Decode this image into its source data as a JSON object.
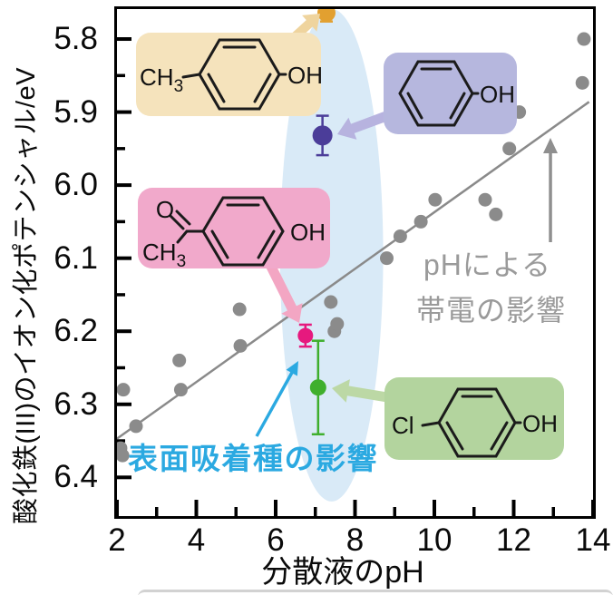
{
  "chart_data": {
    "type": "scatter",
    "title": "",
    "xlabel": "分散液のpH",
    "ylabel": "酸化鉄(III)のイオン化ポテンシャル/eV",
    "x_axis": {
      "min": 2,
      "max": 14,
      "major_ticks": [
        2,
        4,
        6,
        8,
        10,
        12,
        14
      ],
      "minor_ticks": [
        3,
        5,
        7,
        9,
        11,
        13
      ]
    },
    "y_axis": {
      "min": 5.759,
      "max": 6.453,
      "inverted": true,
      "unit": "eV",
      "major_ticks": [
        5.8,
        5.9,
        6.0,
        6.1,
        6.2,
        6.3,
        6.4
      ],
      "minor_ticks": [
        5.85,
        5.95,
        6.05,
        6.15,
        6.25,
        6.35
      ]
    },
    "gray_color": "#8b8b8b",
    "gray_points": [
      [
        2.16,
        6.28
      ],
      [
        2.09,
        6.36
      ],
      [
        2.14,
        6.37
      ],
      [
        2.48,
        6.33
      ],
      [
        3.57,
        6.24
      ],
      [
        3.61,
        6.28
      ],
      [
        5.09,
        6.17
      ],
      [
        5.11,
        6.22
      ],
      [
        7.39,
        6.16
      ],
      [
        7.48,
        6.2
      ],
      [
        7.55,
        6.19
      ],
      [
        8.8,
        6.1
      ],
      [
        9.14,
        6.07
      ],
      [
        9.66,
        6.05
      ],
      [
        10.02,
        6.02
      ],
      [
        11.28,
        6.02
      ],
      [
        11.55,
        6.04
      ],
      [
        11.89,
        5.95
      ],
      [
        12.14,
        5.9
      ],
      [
        13.73,
        5.86
      ],
      [
        13.77,
        5.8
      ]
    ],
    "trend_line": {
      "x1": 2.0,
      "y1": 6.347,
      "x2": 13.9,
      "y2": 5.886,
      "color": "#8a8a8a"
    },
    "highlight_ellipse": {
      "center_ph": 7.41,
      "center_ev": 6.096,
      "rx_ph": 1.3,
      "ry_ev": 0.337,
      "color": "#D9EAF7"
    },
    "special_points": [
      {
        "name": "p-cresol",
        "ph": 7.28,
        "ev": 5.764,
        "err": 0.012,
        "color": "#E2A030",
        "r": 10
      },
      {
        "name": "phenol",
        "ph": 7.18,
        "ev": 5.932,
        "err": 0.027,
        "color": "#4B3D99",
        "r": 11
      },
      {
        "name": "4-hydroxyacetophenone",
        "ph": 6.75,
        "ev": 6.206,
        "err": 0.015,
        "color": "#E6197E",
        "r": 8.5
      },
      {
        "name": "4-chlorophenol",
        "ph": 7.07,
        "ev": 6.277,
        "err": 0.064,
        "color": "#3FAF2D",
        "r": 9
      }
    ],
    "annotations": {
      "ph_effect_line1": "pHによる",
      "ph_effect_line2": "帯電の影響",
      "adsorption_effect": "表面吸着種の影響"
    }
  },
  "molecules": {
    "p_cresol": {
      "left_main": "CH",
      "left_sub": "3",
      "right_label": "OH",
      "box_color": "#F5E3BC"
    },
    "phenol": {
      "right_label": "OH",
      "box_color": "#B6B7DE"
    },
    "acetophenone": {
      "o_label": "O",
      "ch_main": "CH",
      "ch_sub": "3",
      "right_label": "OH",
      "box_color": "#F1A9CB"
    },
    "chlorophenol": {
      "left_label": "Cl",
      "right_label": "OH",
      "box_color": "#B3D49E"
    }
  }
}
